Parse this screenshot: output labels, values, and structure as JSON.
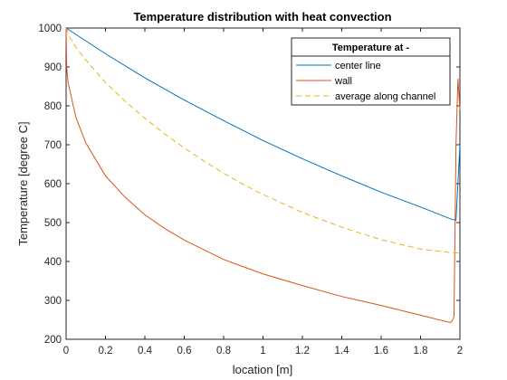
{
  "chart_data": {
    "type": "line",
    "title": "Temperature distribution with heat convection",
    "xlabel": "location [m]",
    "ylabel": "Temperature [degree C]",
    "xlim": [
      0,
      2
    ],
    "ylim": [
      200,
      1000
    ],
    "xticks": [
      0,
      0.2,
      0.4,
      0.6,
      0.8,
      1,
      1.2,
      1.4,
      1.6,
      1.8,
      2
    ],
    "xtick_labels": [
      "0",
      "0.2",
      "0.4",
      "0.6",
      "0.8",
      "1",
      "1.2",
      "1.4",
      "1.6",
      "1.8",
      "2"
    ],
    "yticks": [
      200,
      300,
      400,
      500,
      600,
      700,
      800,
      900,
      1000
    ],
    "ytick_labels": [
      "200",
      "300",
      "400",
      "500",
      "600",
      "700",
      "800",
      "900",
      "1000"
    ],
    "grid": false,
    "legend": {
      "title": "Temperature at -",
      "placement": "top-right",
      "entries": [
        "center line",
        "wall",
        "average along channel"
      ]
    },
    "series": [
      {
        "name": "center line",
        "color": "#0072BD",
        "style": "solid",
        "points": [
          [
            0,
            1000
          ],
          [
            0.2,
            934
          ],
          [
            0.4,
            872
          ],
          [
            0.6,
            815
          ],
          [
            0.8,
            762
          ],
          [
            1.0,
            711
          ],
          [
            1.2,
            664
          ],
          [
            1.4,
            620
          ],
          [
            1.6,
            578
          ],
          [
            1.8,
            540
          ],
          [
            1.96,
            508
          ],
          [
            1.98,
            506
          ],
          [
            2.0,
            700
          ]
        ]
      },
      {
        "name": "wall",
        "color": "#D95319",
        "style": "solid",
        "points": [
          [
            0,
            1000
          ],
          [
            0.003,
            900
          ],
          [
            0.01,
            860
          ],
          [
            0.05,
            770
          ],
          [
            0.1,
            705
          ],
          [
            0.2,
            620
          ],
          [
            0.3,
            565
          ],
          [
            0.4,
            520
          ],
          [
            0.5,
            485
          ],
          [
            0.6,
            455
          ],
          [
            0.8,
            405
          ],
          [
            1.0,
            368
          ],
          [
            1.2,
            338
          ],
          [
            1.4,
            310
          ],
          [
            1.6,
            287
          ],
          [
            1.8,
            262
          ],
          [
            1.95,
            243
          ],
          [
            1.96,
            247
          ],
          [
            1.97,
            258
          ],
          [
            1.98,
            700
          ],
          [
            1.99,
            870
          ],
          [
            2.0,
            790
          ]
        ]
      },
      {
        "name": "average along channel",
        "color": "#EDB120",
        "style": "dashed",
        "points": [
          [
            0,
            1000
          ],
          [
            0.02,
            975
          ],
          [
            0.05,
            950
          ],
          [
            0.1,
            918
          ],
          [
            0.2,
            860
          ],
          [
            0.3,
            812
          ],
          [
            0.4,
            768
          ],
          [
            0.5,
            728
          ],
          [
            0.6,
            692
          ],
          [
            0.7,
            658
          ],
          [
            0.8,
            627
          ],
          [
            0.9,
            598
          ],
          [
            1.0,
            572
          ],
          [
            1.2,
            526
          ],
          [
            1.4,
            488
          ],
          [
            1.6,
            456
          ],
          [
            1.8,
            432
          ],
          [
            1.97,
            422
          ],
          [
            2.0,
            422
          ]
        ]
      }
    ]
  }
}
